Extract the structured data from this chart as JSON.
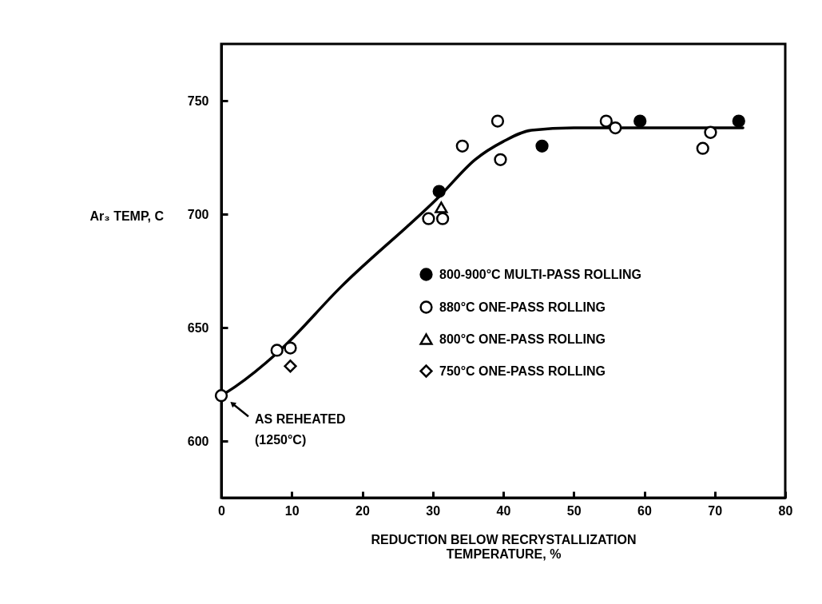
{
  "chart_data": {
    "type": "scatter",
    "xlabel": "REDUCTION BELOW RECRYSTALLIZATION\nTEMPERATURE, %",
    "ylabel": "Ar₃ TEMP, C",
    "xlim": [
      0,
      80
    ],
    "xticks": [
      0,
      10,
      20,
      30,
      40,
      50,
      60,
      70,
      80
    ],
    "ylim": [
      575,
      775
    ],
    "yticks": [
      600,
      650,
      700,
      750
    ],
    "grid": false,
    "legend": "right",
    "series": [
      {
        "name": "800-900°C MULTI-PASS ROLLING",
        "color": "#000000",
        "marker": "circle",
        "x": [
          30.9,
          45.5,
          59.4,
          73.4
        ],
        "values": [
          710,
          730,
          741,
          741
        ]
      },
      {
        "name": "880°C ONE-PASS ROLLING",
        "color": "#ffffff",
        "marker": "circle",
        "x": [
          0,
          7.9,
          9.8,
          29.4,
          31.4,
          34.2,
          39.2,
          39.6,
          54.6,
          55.9,
          68.3,
          69.4
        ],
        "values": [
          620,
          640,
          641,
          698,
          698,
          730,
          741,
          724,
          741,
          738,
          729,
          736
        ]
      },
      {
        "name": "800°C ONE-PASS ROLLING",
        "color": "#ffffff",
        "marker": "triangle",
        "x": [
          31.2
        ],
        "values": [
          703
        ]
      },
      {
        "name": "750°C ONE-PASS ROLLING",
        "color": "#ffffff",
        "marker": "diamond",
        "x": [
          9.8
        ],
        "values": [
          633
        ]
      },
      {
        "type": "line",
        "color": "#000000",
        "marker": "none",
        "line_style": "solid",
        "x": [
          0,
          2,
          8,
          17,
          31,
          36,
          40,
          44,
          50,
          74
        ],
        "values": [
          620,
          624,
          639,
          668,
          708,
          724,
          732,
          737,
          738,
          738
        ]
      }
    ],
    "annotations": [
      {
        "text": "AS REHEATED\n(1250°C)",
        "x": 0,
        "y": 620
      }
    ]
  }
}
